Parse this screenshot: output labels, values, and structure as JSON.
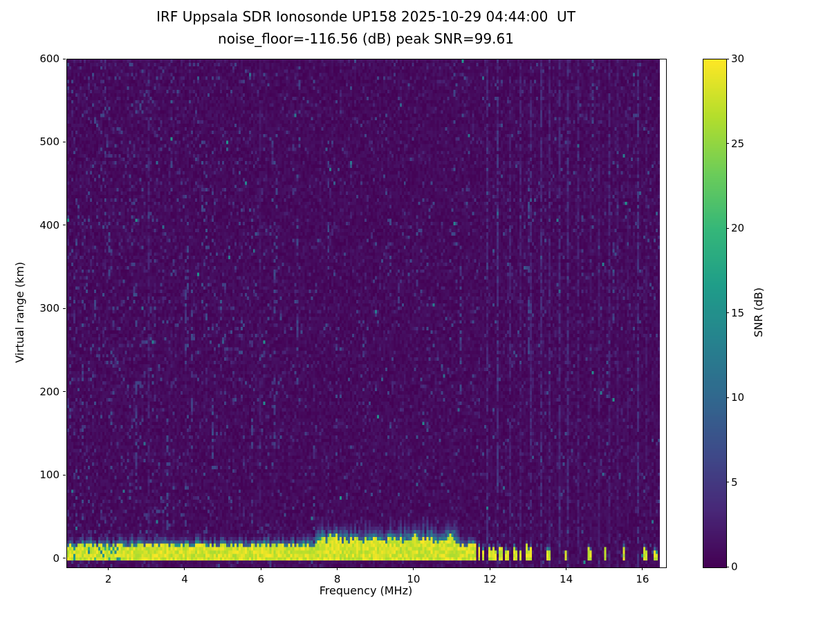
{
  "chart_data": {
    "type": "heatmap",
    "title": "IRF Uppsala SDR Ionosonde UP158 2025-10-29 04:44:00  UT",
    "subtitle": "noise_floor=-116.56 (dB) peak SNR=99.61",
    "xlabel": "Frequency (MHz)",
    "ylabel": "Virtual range (km)",
    "xlim": [
      0.9,
      16.6
    ],
    "ylim": [
      -10,
      600
    ],
    "xticks": [
      2,
      4,
      6,
      8,
      10,
      12,
      14,
      16
    ],
    "yticks": [
      0,
      100,
      200,
      300,
      400,
      500,
      600
    ],
    "colormap": "viridis",
    "colorbar": {
      "label": "SNR (dB)",
      "min": 0,
      "max": 30,
      "ticks": [
        0,
        5,
        10,
        15,
        20,
        25,
        30
      ]
    },
    "noise_floor_db": -116.56,
    "peak_snr_db": 99.61,
    "station": "IRF Uppsala SDR Ionosonde UP158",
    "timestamp_ut": "2025-10-29 04:44:00",
    "features": {
      "ground_echo": {
        "description": "continuous saturated yellow echo band near zero virtual range",
        "freq_range_mhz": [
          0.95,
          11.62
        ],
        "virtual_range_km": [
          0,
          20
        ],
        "snr_db": 30
      },
      "stepped_pulses_mhz": [
        11.7,
        11.82,
        11.95,
        12.1,
        12.25,
        12.42,
        12.6,
        12.78,
        12.95,
        13.08,
        13.5,
        14.0,
        14.55,
        15.0,
        15.5,
        16.05,
        16.3
      ],
      "rfi_stripes_mhz": [
        3.05,
        5.95,
        11.9,
        12.2,
        12.5,
        12.8,
        13.05,
        13.3,
        13.55,
        13.8,
        14.05,
        14.3,
        14.6,
        14.85,
        15.1,
        15.35,
        15.6,
        15.85,
        16.1
      ],
      "background": "dark purple noise floor with sparse teal speckles, denser below 7 MHz, faint vertical RFI stripes above 11.8 MHz, blank white column at far right edge"
    }
  }
}
